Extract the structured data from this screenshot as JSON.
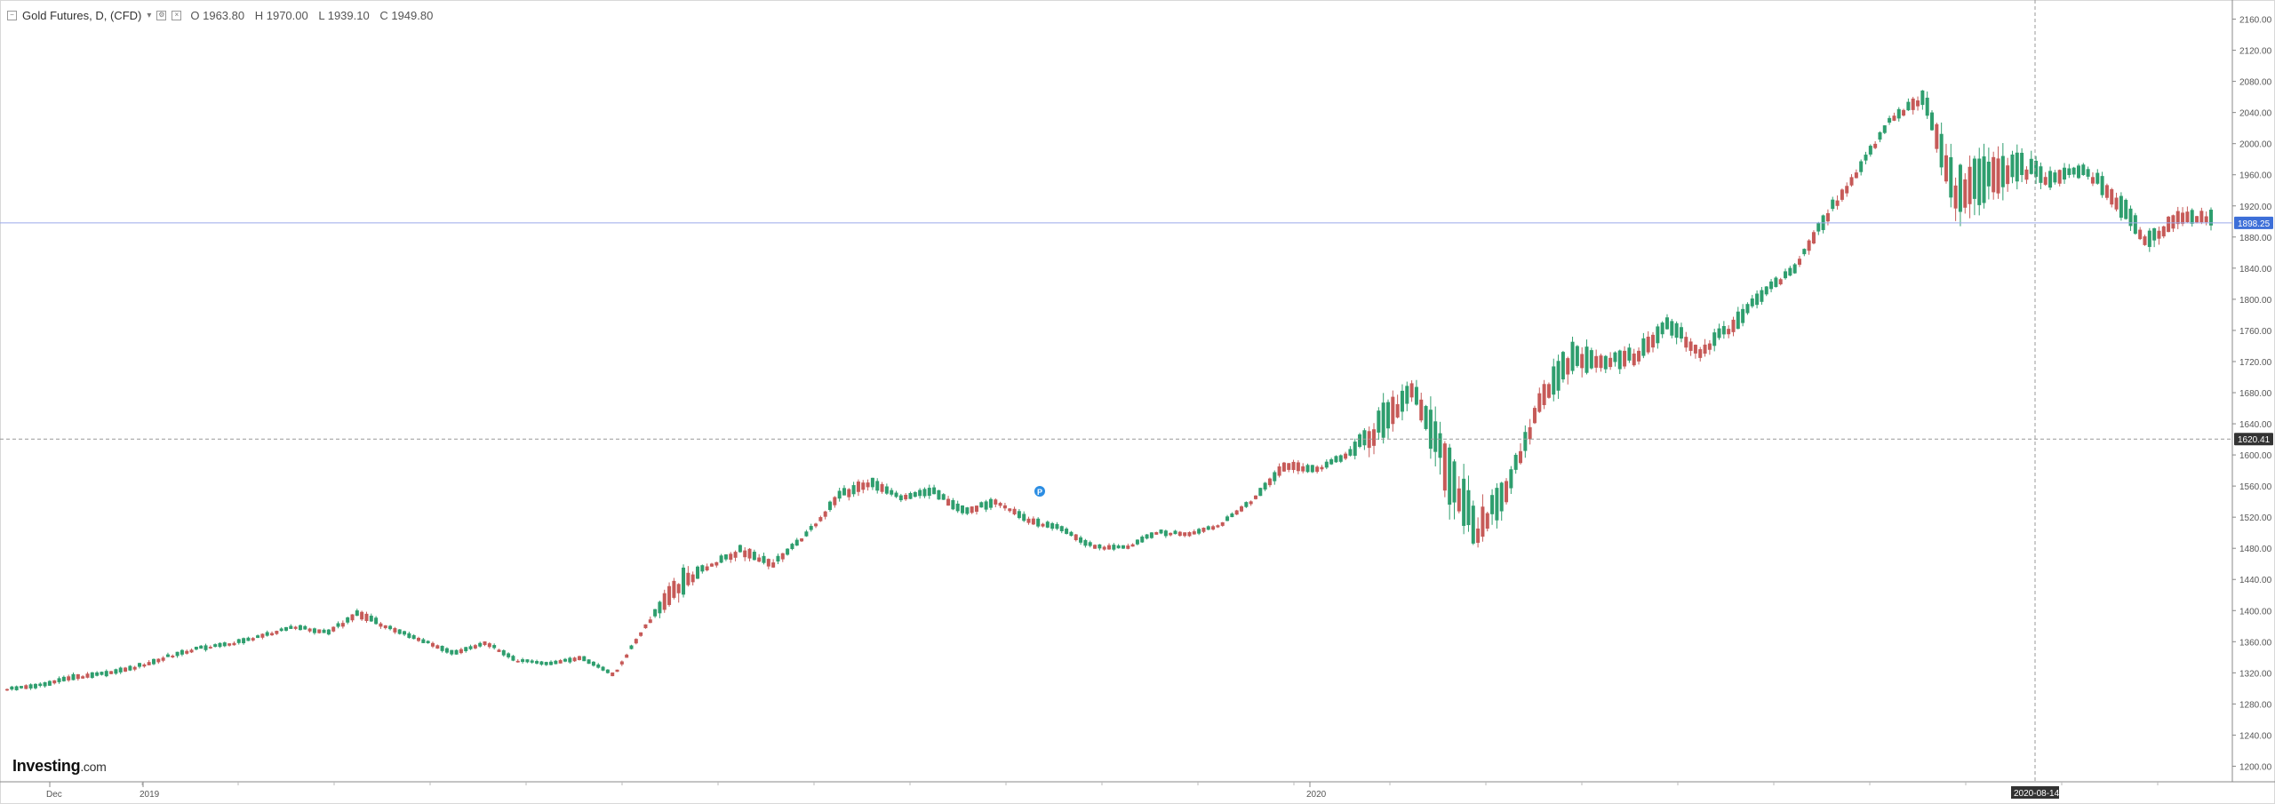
{
  "legend": {
    "title": "Gold Futures, D, (CFD)",
    "open": "O 1963.80",
    "high": "H 1970.00",
    "low": "L 1939.10",
    "close": "C 1949.80"
  },
  "logo": {
    "brand": "Investing",
    "suffix": ".com"
  },
  "colors": {
    "up": "#2e9e6e",
    "down": "#c65a58",
    "axis": "#888888",
    "last_price_badge": "#3d6fd8",
    "crosshair_badge": "#333333",
    "last_price_line": "#9aa9ea"
  },
  "icons": [
    "collapse-icon",
    "settings-icon",
    "close-icon",
    "event-marker-icon"
  ],
  "chart_data": {
    "type": "candlestick",
    "title": "Gold Futures, D, (CFD)",
    "ylim": [
      1180,
      2180
    ],
    "y_ticks": [
      2160,
      2120,
      2080,
      2040,
      2000,
      1960,
      1920,
      1880,
      1840,
      1800,
      1760,
      1720,
      1680,
      1640,
      1600,
      1560,
      1520,
      1480,
      1440,
      1400,
      1360,
      1320,
      1280,
      1240,
      1200
    ],
    "x_labels": [
      "Dec",
      "2019",
      "2020"
    ],
    "crosshair_price": "1620.41",
    "last_price": "1898.25",
    "crosshair_date": "2020-08-14",
    "grid": false,
    "series": [
      {
        "ohlc_waypoints": [
          [
            1298,
            1304,
            1294,
            1300
          ],
          [
            1302,
            1308,
            1296,
            1304
          ],
          [
            1312,
            1320,
            1306,
            1316
          ],
          [
            1316,
            1322,
            1310,
            1320
          ],
          [
            1325,
            1332,
            1318,
            1328
          ],
          [
            1338,
            1346,
            1332,
            1342
          ],
          [
            1350,
            1356,
            1344,
            1352
          ],
          [
            1356,
            1362,
            1350,
            1358
          ],
          [
            1366,
            1372,
            1360,
            1368
          ],
          [
            1378,
            1384,
            1372,
            1380
          ],
          [
            1372,
            1378,
            1366,
            1370
          ],
          [
            1392,
            1410,
            1386,
            1398
          ],
          [
            1378,
            1386,
            1372,
            1376
          ],
          [
            1360,
            1366,
            1354,
            1362
          ],
          [
            1346,
            1352,
            1340,
            1344
          ],
          [
            1356,
            1362,
            1350,
            1360
          ],
          [
            1336,
            1342,
            1330,
            1334
          ],
          [
            1330,
            1336,
            1326,
            1332
          ],
          [
            1338,
            1344,
            1332,
            1340
          ],
          [
            1318,
            1324,
            1312,
            1316
          ],
          [
            1378,
            1386,
            1372,
            1382
          ],
          [
            1420,
            1480,
            1410,
            1444
          ],
          [
            1456,
            1464,
            1448,
            1460
          ],
          [
            1470,
            1490,
            1460,
            1482
          ],
          [
            1466,
            1472,
            1448,
            1452
          ],
          [
            1494,
            1500,
            1486,
            1498
          ],
          [
            1540,
            1560,
            1530,
            1548
          ],
          [
            1560,
            1580,
            1550,
            1570
          ],
          [
            1546,
            1552,
            1538,
            1542
          ],
          [
            1556,
            1566,
            1540,
            1548
          ],
          [
            1532,
            1538,
            1516,
            1520
          ],
          [
            1544,
            1550,
            1530,
            1536
          ],
          [
            1520,
            1526,
            1508,
            1512
          ],
          [
            1508,
            1514,
            1496,
            1500
          ],
          [
            1484,
            1490,
            1476,
            1480
          ],
          [
            1478,
            1484,
            1470,
            1482
          ],
          [
            1502,
            1508,
            1494,
            1498
          ],
          [
            1496,
            1504,
            1490,
            1500
          ],
          [
            1512,
            1518,
            1504,
            1508
          ],
          [
            1540,
            1548,
            1532,
            1544
          ],
          [
            1580,
            1600,
            1570,
            1592
          ],
          [
            1578,
            1588,
            1570,
            1584
          ],
          [
            1598,
            1606,
            1586,
            1602
          ],
          [
            1610,
            1690,
            1590,
            1660
          ],
          [
            1680,
            1708,
            1660,
            1688
          ],
          [
            1640,
            1660,
            1520,
            1530
          ],
          [
            1520,
            1560,
            1458,
            1480
          ],
          [
            1540,
            1580,
            1520,
            1570
          ],
          [
            1650,
            1700,
            1640,
            1690
          ],
          [
            1710,
            1780,
            1700,
            1740
          ],
          [
            1720,
            1740,
            1700,
            1716
          ],
          [
            1730,
            1760,
            1710,
            1720
          ],
          [
            1760,
            1790,
            1740,
            1770
          ],
          [
            1740,
            1760,
            1720,
            1726
          ],
          [
            1760,
            1780,
            1740,
            1768
          ],
          [
            1800,
            1820,
            1790,
            1814
          ],
          [
            1838,
            1848,
            1826,
            1842
          ],
          [
            1900,
            1930,
            1890,
            1916
          ],
          [
            1960,
            1980,
            1950,
            1974
          ],
          [
            2030,
            2040,
            2020,
            2034
          ],
          [
            2048,
            2080,
            2040,
            2068
          ],
          [
            1930,
            2020,
            1900,
            1940
          ],
          [
            1940,
            2000,
            1880,
            1960
          ],
          [
            1960,
            2010,
            1940,
            1980
          ],
          [
            1950,
            1970,
            1930,
            1956
          ],
          [
            1968,
            1980,
            1950,
            1962
          ],
          [
            1940,
            1960,
            1900,
            1920
          ],
          [
            1880,
            1900,
            1850,
            1868
          ],
          [
            1900,
            1920,
            1880,
            1910
          ],
          [
            1912,
            1924,
            1886,
            1898
          ]
        ],
        "ohlc_note": "waypoints are read at roughly even intervals across the date axis"
      }
    ]
  }
}
